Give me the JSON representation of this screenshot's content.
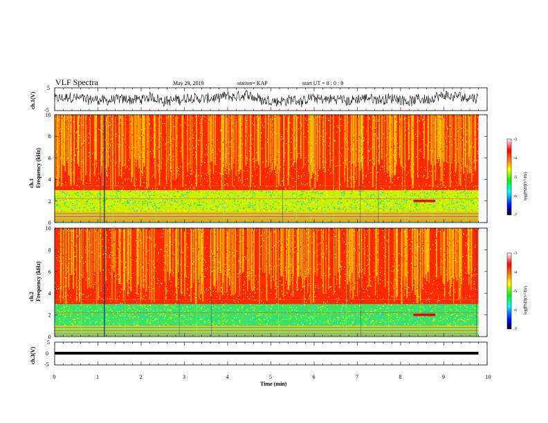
{
  "header": {
    "title": "VLF Spectra",
    "date": "May 29, 2019",
    "station": "station= KAP",
    "start": "start  UT  =   8  : 0  : 0"
  },
  "chart_data": [
    {
      "type": "line",
      "name": "ch1-waveform",
      "ylabel": "ch.1(V)",
      "ylim": [
        -5,
        5
      ],
      "yticks": [
        "5",
        "-5"
      ],
      "xlim": [
        0,
        10
      ],
      "x_range_min": [
        0,
        9.8
      ],
      "character": "noisy broadband signal, roughly -3 to +3 V"
    },
    {
      "type": "heatmap",
      "name": "ch1-spectrogram",
      "ylabel": "ch.1\nFrequency (kHz)",
      "ylabel_line1": "ch.1",
      "ylabel_line2": "Frequency (kHz)",
      "ylim": [
        0,
        10
      ],
      "yticks": [
        "0",
        "2",
        "4",
        "6",
        "8",
        "10"
      ],
      "xlim": [
        0,
        10
      ],
      "x_range_min": [
        0,
        9.8
      ],
      "colorbar": {
        "label": "log(PSD)(V²/Hz)",
        "ticks": [
          "-3",
          "-4",
          "-5",
          "-6",
          "-7"
        ],
        "range": [
          -7,
          -3
        ],
        "colors": [
          "#000000",
          "#0000ff",
          "#00ffff",
          "#00ff00",
          "#ffff00",
          "#ff8000",
          "#ff0000",
          "#ffffff"
        ]
      },
      "bands": [
        {
          "from_khz": 0,
          "to_khz": 1,
          "level": "red/yellow with horizontal lines"
        },
        {
          "from_khz": 1,
          "to_khz": 3,
          "level": "green/yellow"
        },
        {
          "from_khz": 3,
          "to_khz": 10,
          "level": "red/yellow"
        }
      ]
    },
    {
      "type": "heatmap",
      "name": "ch2-spectrogram",
      "ylabel_line1": "ch.2",
      "ylabel_line2": "Frequency (kHz)",
      "ylim": [
        0,
        10
      ],
      "yticks": [
        "0",
        "2",
        "4",
        "6",
        "8",
        "10"
      ],
      "xlim": [
        0,
        10
      ],
      "x_range_min": [
        0,
        9.8
      ],
      "colorbar": {
        "label": "log(PSD)(V²/Hz)",
        "ticks": [
          "-3",
          "-4",
          "-5",
          "-6",
          "-7"
        ],
        "range": [
          -7,
          -3
        ]
      },
      "bands": [
        {
          "from_khz": 0,
          "to_khz": 1,
          "level": "yellow/cyan with horizontal lines"
        },
        {
          "from_khz": 1,
          "to_khz": 3,
          "level": "cyan/green"
        },
        {
          "from_khz": 3,
          "to_khz": 10,
          "level": "red/yellow"
        }
      ]
    },
    {
      "type": "line",
      "name": "ch3-waveform",
      "ylabel": "ch.3(V)",
      "ylim": [
        -5,
        5
      ],
      "yticks": [
        "5",
        "0",
        "-5"
      ],
      "xlim": [
        0,
        10
      ],
      "x_range_min": [
        0,
        9.8
      ],
      "values_constant": 0,
      "character": "flat line at 0 V"
    }
  ],
  "xaxis": {
    "label": "Time (min)",
    "ticks": [
      "0",
      "1",
      "2",
      "3",
      "4",
      "5",
      "6",
      "7",
      "8",
      "9",
      "10"
    ]
  }
}
